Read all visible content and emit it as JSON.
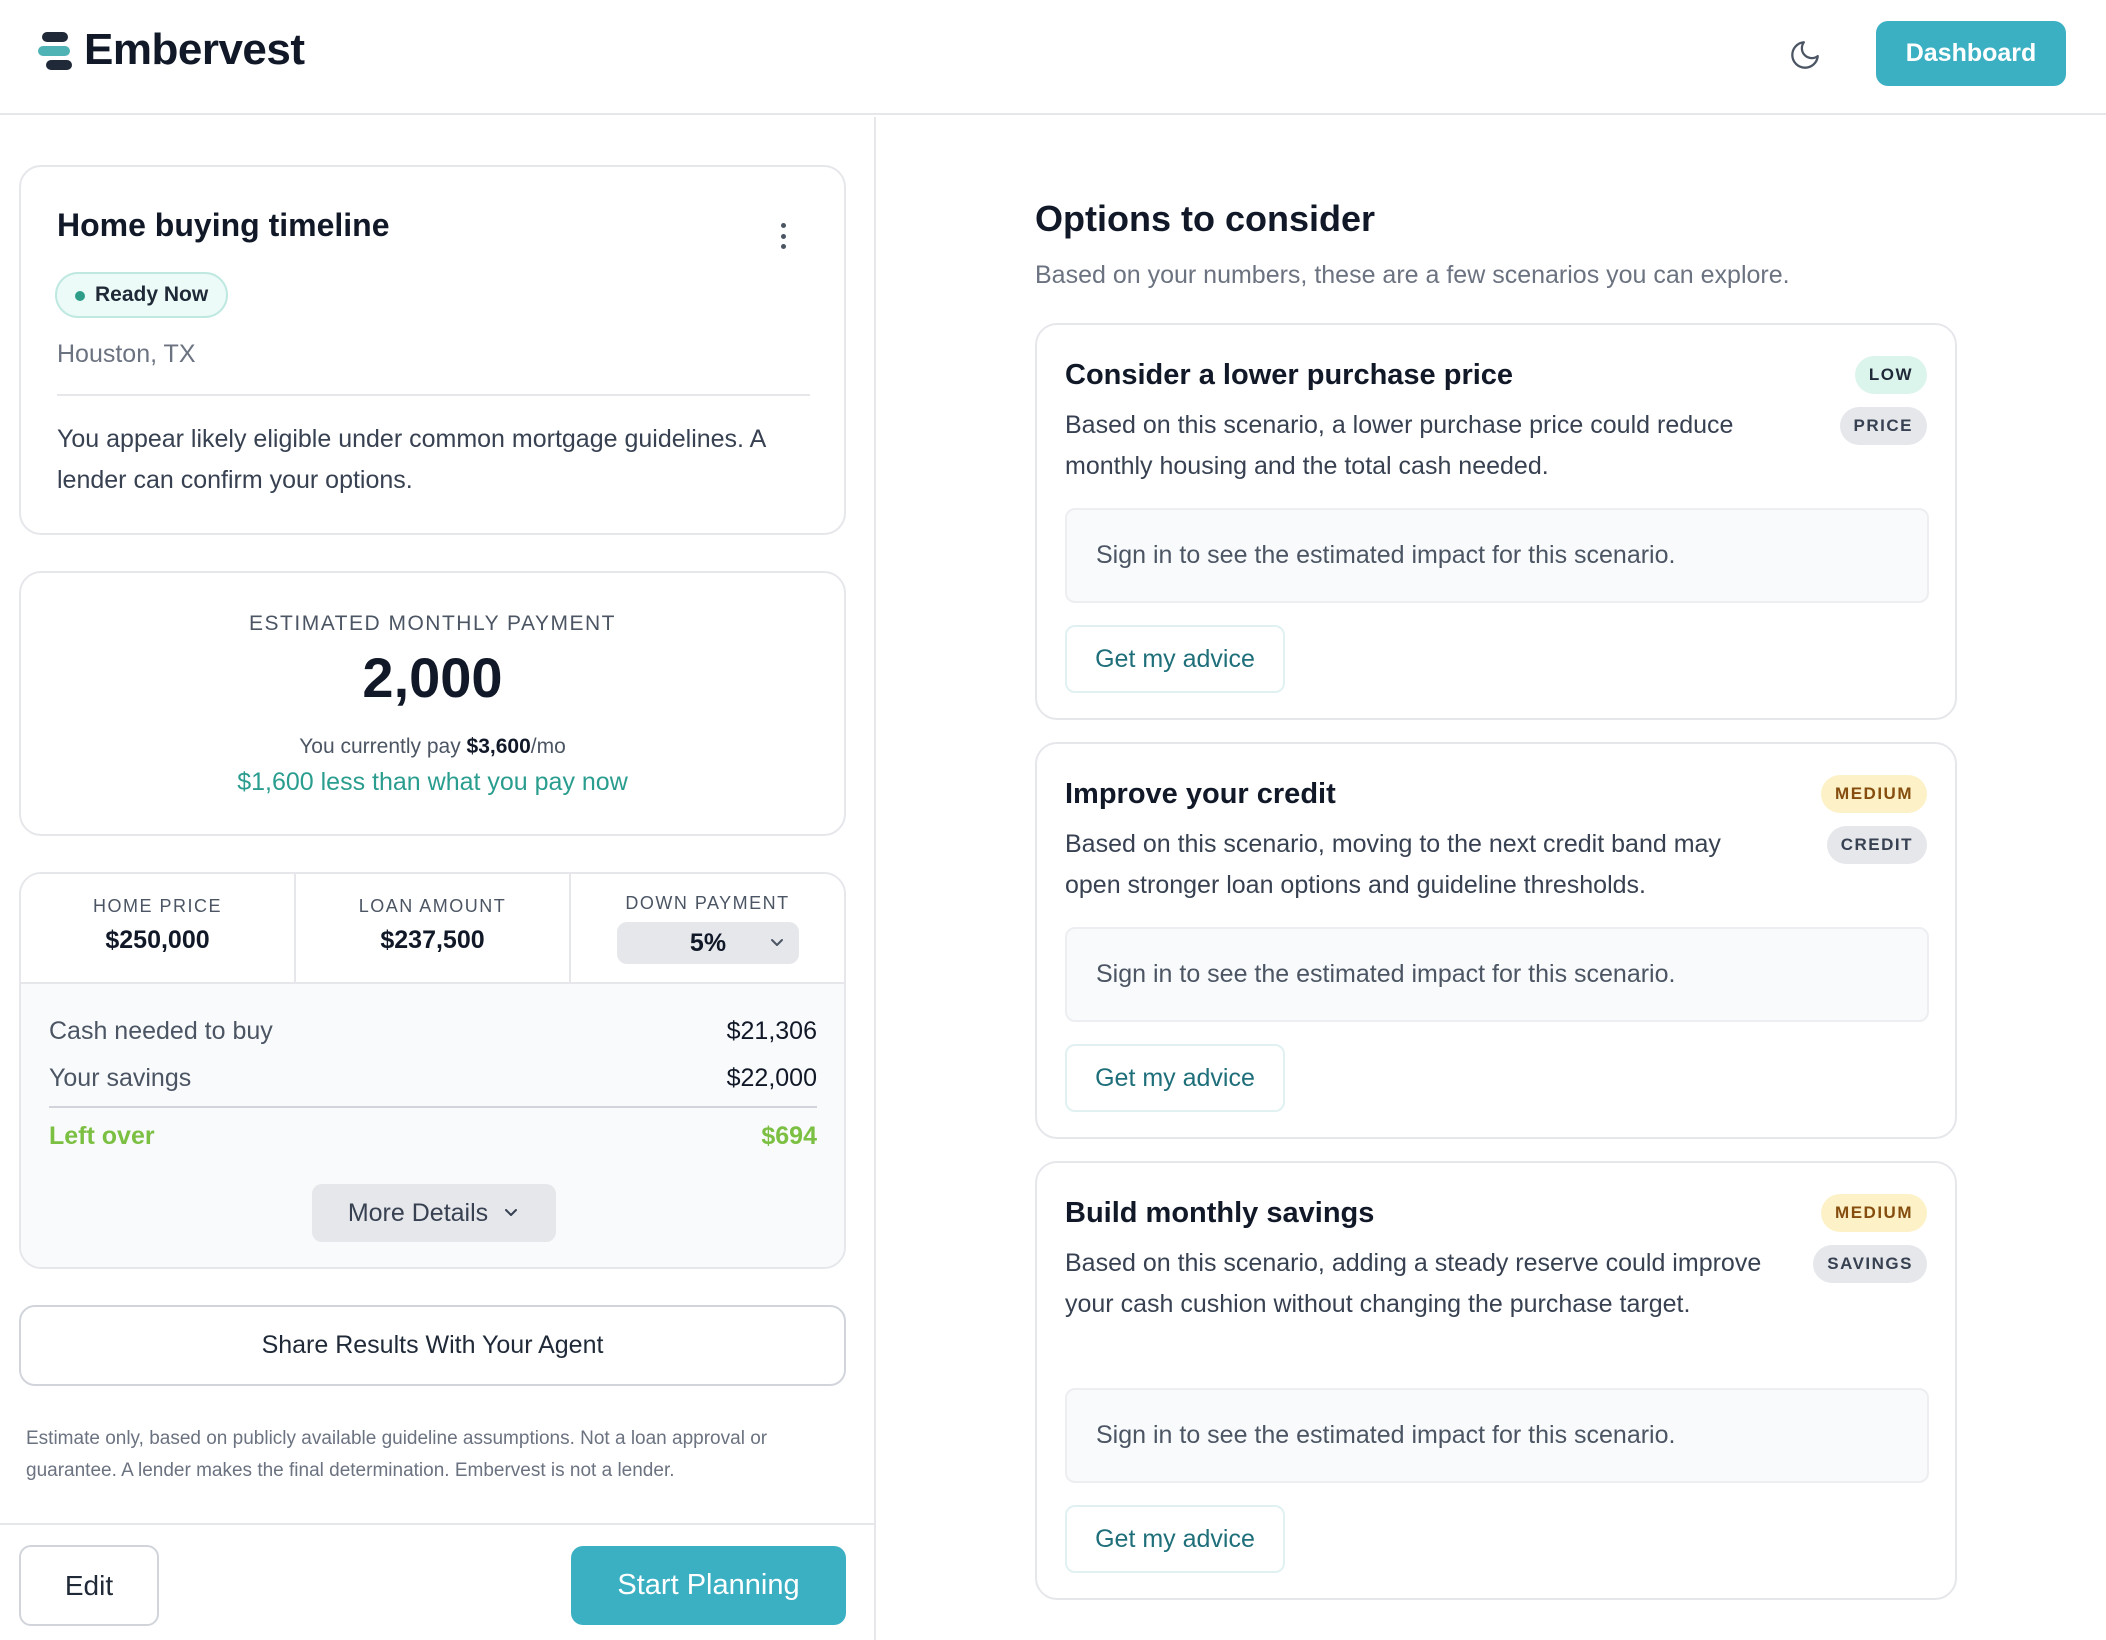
{
  "header": {
    "brand": "Embervest",
    "dashboard_label": "Dashboard",
    "theme_icon": "moon-icon",
    "colors": {
      "accent": "#3bb0c3",
      "logo_accent": "#4fb3b6"
    }
  },
  "timeline": {
    "title": "Home buying timeline",
    "status": "Ready Now",
    "location": "Houston, TX",
    "description": "You appear likely eligible under common mortgage guidelines. A lender can confirm your options."
  },
  "payment": {
    "label": "ESTIMATED MONTHLY PAYMENT",
    "value": "2,000",
    "current_prefix": "You currently pay ",
    "current_amount": "$3,600",
    "current_suffix": "/mo",
    "difference": "$1,600 less than what you pay now"
  },
  "breakdown": {
    "home_price_label": "HOME PRICE",
    "home_price": "$250,000",
    "loan_amount_label": "LOAN AMOUNT",
    "loan_amount": "$237,500",
    "down_payment_label": "DOWN PAYMENT",
    "down_payment": "5%",
    "cash_needed_label": "Cash needed to buy",
    "cash_needed": "$21,306",
    "savings_label": "Your savings",
    "savings": "$22,000",
    "left_over_label": "Left over",
    "left_over": "$694",
    "more_details_label": "More Details"
  },
  "share_label": "Share Results With Your Agent",
  "disclaimer": "Estimate only, based on publicly available guideline assumptions. Not a loan approval or guarantee. A lender makes the final determination. Embervest is not a lender.",
  "footer": {
    "edit_label": "Edit",
    "start_label": "Start Planning"
  },
  "options": {
    "title": "Options to consider",
    "subtitle": "Based on your numbers, these are a few scenarios you can explore.",
    "scenarios": [
      {
        "title": "Consider a lower purchase price",
        "level": "LOW",
        "tag": "PRICE",
        "description": "Based on this scenario, a lower purchase price could reduce monthly housing and the total cash needed.",
        "impact": "Sign in to see the estimated impact for this scenario.",
        "button": "Get my advice"
      },
      {
        "title": "Improve your credit",
        "level": "MEDIUM",
        "tag": "CREDIT",
        "description": "Based on this scenario, moving to the next credit band may open stronger loan options and guideline thresholds.",
        "impact": "Sign in to see the estimated impact for this scenario.",
        "button": "Get my advice"
      },
      {
        "title": "Build monthly savings",
        "level": "MEDIUM",
        "tag": "SAVINGS",
        "description": "Based on this scenario, adding a steady reserve could improve your cash cushion without changing the purchase target.",
        "impact": "Sign in to see the estimated impact for this scenario.",
        "button": "Get my advice"
      }
    ]
  }
}
